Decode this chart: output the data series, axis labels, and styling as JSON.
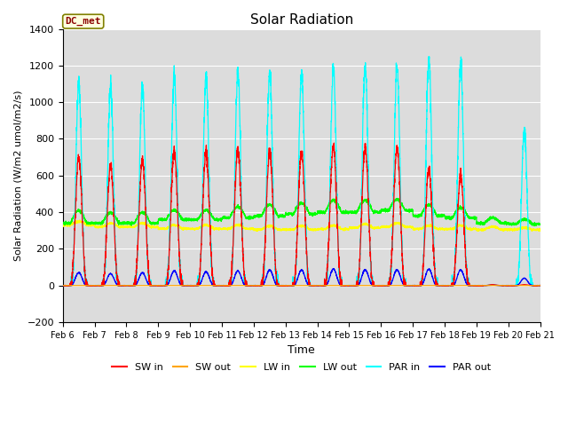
{
  "title": "Solar Radiation",
  "ylabel": "Solar Radiation (W/m2 umol/m2/s)",
  "xlabel": "Time",
  "ylim": [
    -200,
    1400
  ],
  "annotation_text": "DC_met",
  "background_color": "#dcdcdc",
  "x_tick_labels": [
    "Feb 6",
    "Feb 7",
    "Feb 8",
    "Feb 9",
    "Feb 10",
    "Feb 11",
    "Feb 12",
    "Feb 13",
    "Feb 14",
    "Feb 15",
    "Feb 16",
    "Feb 17",
    "Feb 18",
    "Feb 19",
    "Feb 20",
    "Feb 21"
  ],
  "num_days": 15,
  "pts_per_day": 288,
  "sw_in_peaks": [
    700,
    660,
    680,
    730,
    720,
    740,
    730,
    730,
    760,
    750,
    750,
    635,
    600,
    5,
    5
  ],
  "sw_out_peaks": [
    0,
    0,
    0,
    0,
    0,
    0,
    0,
    0,
    0,
    0,
    0,
    0,
    0,
    0,
    0
  ],
  "lw_in_bases": [
    330,
    320,
    320,
    310,
    310,
    310,
    305,
    305,
    308,
    315,
    320,
    308,
    308,
    305,
    305
  ],
  "lw_out_bases": [
    340,
    340,
    340,
    360,
    360,
    370,
    380,
    390,
    400,
    400,
    410,
    380,
    370,
    340,
    335
  ],
  "lw_out_bumps": [
    70,
    60,
    60,
    50,
    50,
    60,
    60,
    60,
    65,
    65,
    60,
    60,
    55,
    30,
    25
  ],
  "lw_in_bumps": [
    20,
    20,
    20,
    20,
    20,
    20,
    20,
    20,
    20,
    20,
    20,
    20,
    20,
    15,
    10
  ],
  "par_in_peaks": [
    1100,
    1085,
    1085,
    1145,
    1140,
    1155,
    1150,
    1150,
    1185,
    1195,
    1195,
    1240,
    1205,
    5,
    850
  ],
  "par_out_peaks": [
    70,
    65,
    70,
    80,
    75,
    80,
    85,
    85,
    90,
    85,
    85,
    90,
    85,
    2,
    40
  ]
}
